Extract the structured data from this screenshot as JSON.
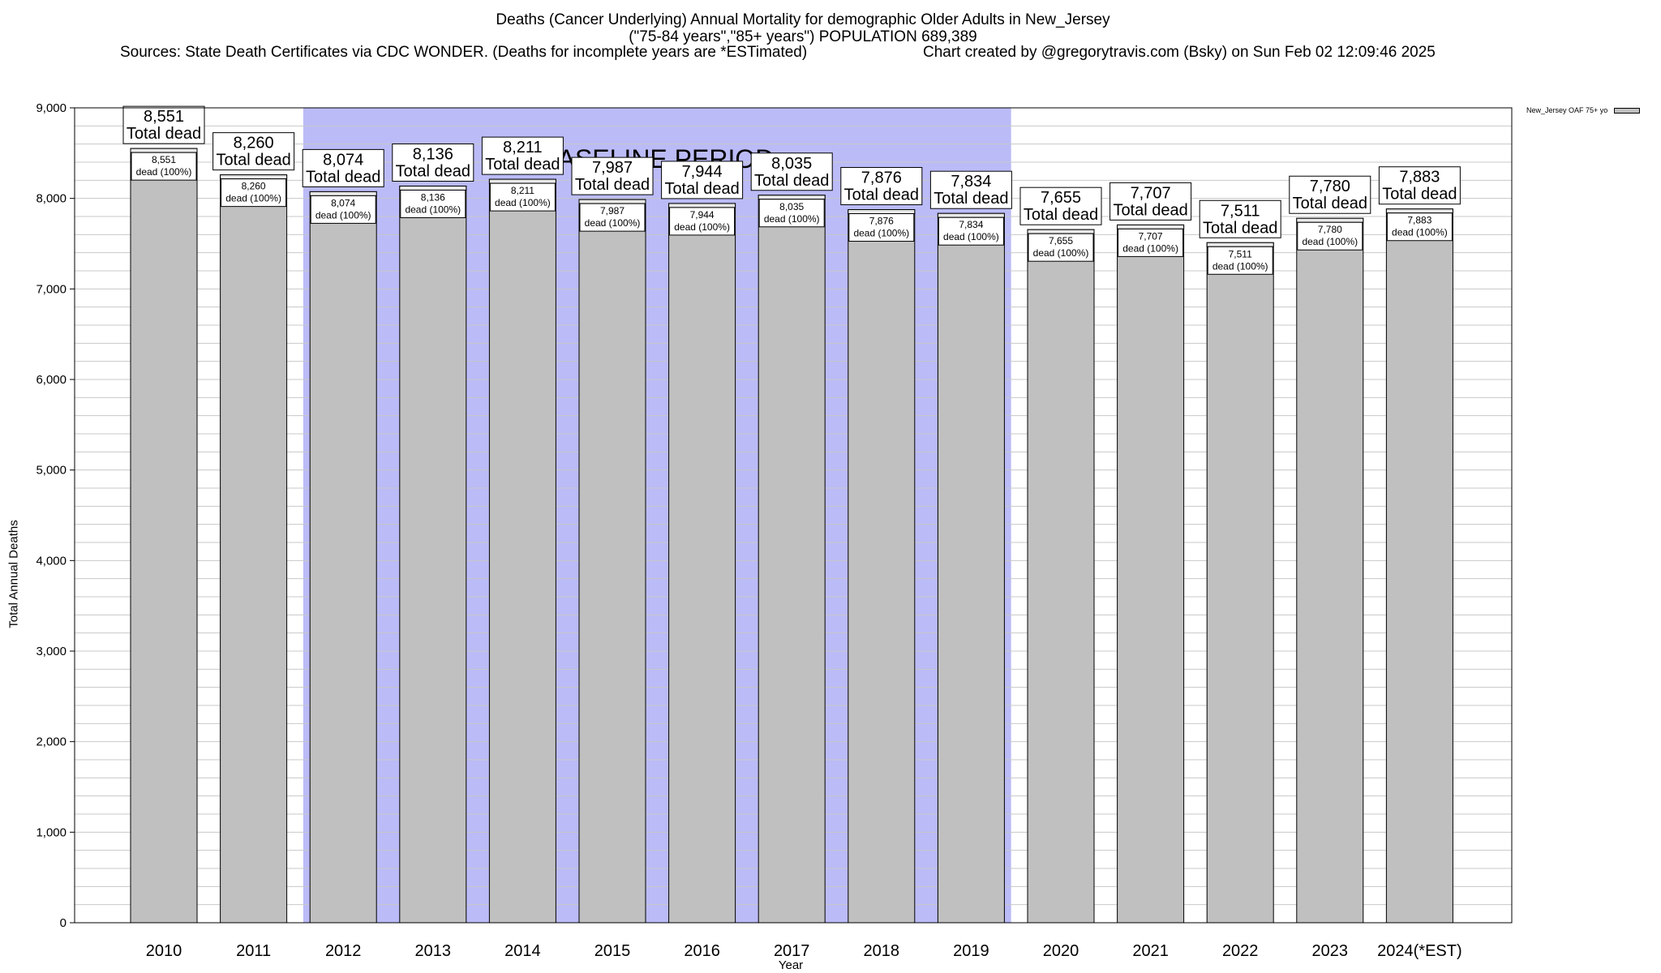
{
  "header": {
    "title_line1": "Deaths (Cancer Underlying) Annual Mortality for demographic Older Adults in New_Jersey",
    "title_line2": "(\"75-84 years\",\"85+ years\") POPULATION 689,389",
    "sources": "Sources: State Death Certificates via CDC WONDER. (Deaths for incomplete years are *ESTimated)",
    "credit": "Chart created by @gregorytravis.com (Bsky) on Sun Feb 02 12:09:46 2025"
  },
  "colors": {
    "bar": "#c0c0c0",
    "baseline_band": "#bbbbf7",
    "grid": "#c8c8c8"
  },
  "chart_data": {
    "type": "bar",
    "title": "Deaths (Cancer Underlying) Annual Mortality for demographic Older Adults in New_Jersey",
    "xlabel": "Year",
    "ylabel": "Total Annual Deaths",
    "ylim": [
      0,
      9000
    ],
    "yticks": [
      0,
      1000,
      2000,
      3000,
      4000,
      5000,
      6000,
      7000,
      8000,
      9000
    ],
    "ytick_labels": [
      "0",
      "1,000",
      "2,000",
      "3,000",
      "4,000",
      "5,000",
      "6,000",
      "7,000",
      "8,000",
      "9,000"
    ],
    "minor_grid_step": 200,
    "grid": true,
    "legend_position": "top-right",
    "categories": [
      "2010",
      "2011",
      "2012",
      "2013",
      "2014",
      "2015",
      "2016",
      "2017",
      "2018",
      "2019",
      "2020",
      "2021",
      "2022",
      "2023",
      "2024(*EST)"
    ],
    "series": [
      {
        "name": "New_Jersey OAF 75+ yo",
        "values": [
          8551,
          8260,
          8074,
          8136,
          8211,
          7987,
          7944,
          8035,
          7876,
          7834,
          7655,
          7707,
          7511,
          7780,
          7883
        ],
        "value_labels": [
          "8,551",
          "8,260",
          "8,074",
          "8,136",
          "8,211",
          "7,987",
          "7,944",
          "8,035",
          "7,876",
          "7,834",
          "7,655",
          "7,707",
          "7,511",
          "7,780",
          "7,883"
        ]
      }
    ],
    "total_label_text": "Total dead",
    "inner_label_text": "dead (100%)",
    "baseline_period": {
      "label": "BASELINE PERIOD",
      "start": "2012",
      "end": "2019"
    }
  }
}
